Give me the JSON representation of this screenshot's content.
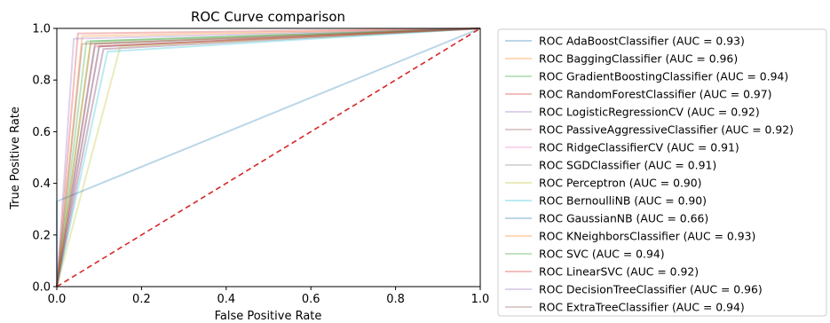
{
  "chart_data": {
    "type": "line",
    "title": "ROC Curve comparison",
    "xlabel": "False Positive Rate",
    "ylabel": "True Positive Rate",
    "xlim": [
      0.0,
      1.0
    ],
    "ylim": [
      0.0,
      1.0
    ],
    "xticks": [
      "0.0",
      "0.2",
      "0.4",
      "0.6",
      "0.8",
      "1.0"
    ],
    "yticks": [
      "0.0",
      "0.2",
      "0.4",
      "0.6",
      "0.8",
      "1.0"
    ],
    "grid": false,
    "legend_position": "outside-right",
    "diagonal": {
      "x": [
        0,
        1
      ],
      "y": [
        0,
        1
      ],
      "color": "#d62728",
      "style": "dashed"
    },
    "series": [
      {
        "name": "ROC AdaBoostClassifier (AUC = 0.93)",
        "color": "#1f77b4",
        "x": [
          0,
          0.09,
          1
        ],
        "y": [
          0,
          0.94,
          1
        ]
      },
      {
        "name": "ROC BaggingClassifier (AUC = 0.96)",
        "color": "#ff7f0e",
        "x": [
          0,
          0.06,
          1
        ],
        "y": [
          0,
          0.97,
          1
        ]
      },
      {
        "name": "ROC GradientBoostingClassifier (AUC = 0.94)",
        "color": "#2ca02c",
        "x": [
          0,
          0.08,
          1
        ],
        "y": [
          0,
          0.95,
          1
        ]
      },
      {
        "name": "ROC RandomForestClassifier (AUC = 0.97)",
        "color": "#d62728",
        "x": [
          0,
          0.05,
          1
        ],
        "y": [
          0,
          0.98,
          1
        ]
      },
      {
        "name": "ROC LogisticRegressionCV (AUC = 0.92)",
        "color": "#9467bd",
        "x": [
          0,
          0.1,
          1
        ],
        "y": [
          0,
          0.93,
          1
        ]
      },
      {
        "name": "ROC PassiveAggressiveClassifier (AUC = 0.92)",
        "color": "#8c564b",
        "x": [
          0,
          0.1,
          1
        ],
        "y": [
          0,
          0.93,
          1
        ]
      },
      {
        "name": "ROC RidgeClassifierCV (AUC = 0.91)",
        "color": "#e377c2",
        "x": [
          0,
          0.11,
          1
        ],
        "y": [
          0,
          0.92,
          1
        ]
      },
      {
        "name": "ROC SGDClassifier (AUC = 0.91)",
        "color": "#7f7f7f",
        "x": [
          0,
          0.11,
          1
        ],
        "y": [
          0,
          0.92,
          1
        ]
      },
      {
        "name": "ROC Perceptron (AUC = 0.90)",
        "color": "#bcbd22",
        "x": [
          0,
          0.15,
          1
        ],
        "y": [
          0,
          0.93,
          1
        ]
      },
      {
        "name": "ROC BernoulliNB (AUC = 0.90)",
        "color": "#17becf",
        "x": [
          0,
          0.12,
          1
        ],
        "y": [
          0,
          0.91,
          1
        ]
      },
      {
        "name": "ROC GaussianNB (AUC = 0.66)",
        "color": "#1f77b4",
        "x": [
          0,
          0.0,
          1
        ],
        "y": [
          0,
          0.33,
          1
        ]
      },
      {
        "name": "ROC KNeighborsClassifier (AUC = 0.93)",
        "color": "#ff7f0e",
        "x": [
          0,
          0.08,
          1
        ],
        "y": [
          0,
          0.94,
          1
        ]
      },
      {
        "name": "ROC SVC (AUC = 0.94)",
        "color": "#2ca02c",
        "x": [
          0,
          0.07,
          1
        ],
        "y": [
          0,
          0.95,
          1
        ]
      },
      {
        "name": "ROC LinearSVC (AUC = 0.92)",
        "color": "#d62728",
        "x": [
          0,
          0.09,
          1
        ],
        "y": [
          0,
          0.93,
          1
        ]
      },
      {
        "name": "ROC DecisionTreeClassifier (AUC = 0.96)",
        "color": "#9467bd",
        "x": [
          0,
          0.04,
          1
        ],
        "y": [
          0,
          0.96,
          1
        ]
      },
      {
        "name": "ROC ExtraTreeClassifier (AUC = 0.94)",
        "color": "#8c564b",
        "x": [
          0,
          0.06,
          1
        ],
        "y": [
          0,
          0.94,
          1
        ]
      }
    ]
  }
}
